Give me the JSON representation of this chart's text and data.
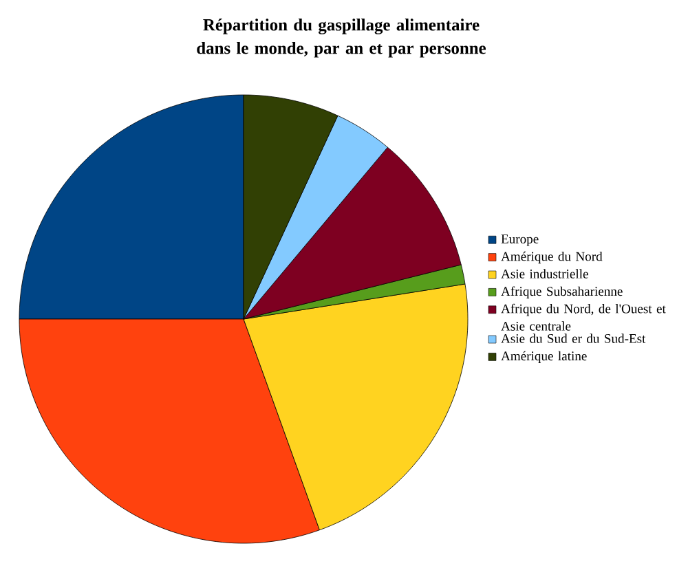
{
  "chart_data": {
    "type": "pie",
    "title": "Répartition du gaspillage alimentaire dans le monde, par an et par personne",
    "categories": [
      "Europe",
      "Amérique du Nord",
      "Asie industrielle",
      "Afrique Subsaharienne",
      "Afrique du Nord, de l'Ouest et Asie centrale",
      "Asie du Sud er du Sud-Est",
      "Amérique latine"
    ],
    "values": [
      25,
      30.5,
      22,
      1.4,
      10,
      4.2,
      6.9
    ],
    "colors": [
      "#004586",
      "#ff420e",
      "#ffd320",
      "#579d1c",
      "#7e0021",
      "#83caff",
      "#314004"
    ],
    "legend": "right"
  }
}
